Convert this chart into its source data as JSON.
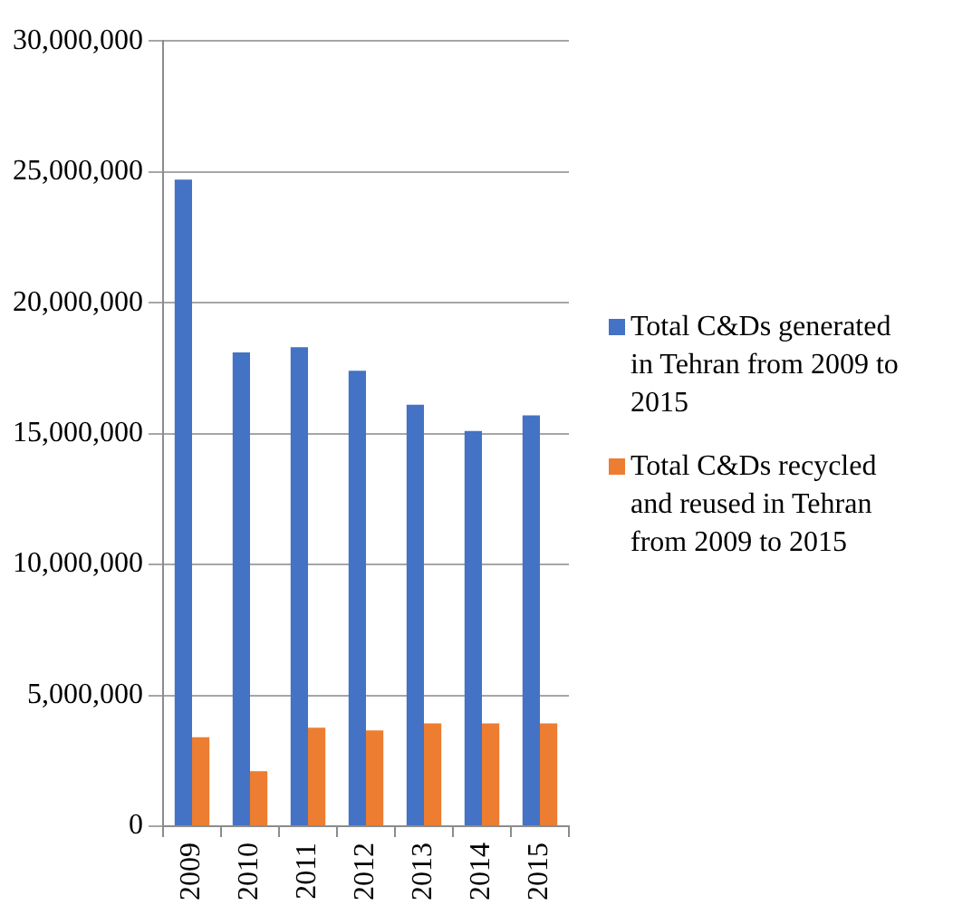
{
  "chart_data": {
    "type": "bar",
    "categories": [
      "2009",
      "2010",
      "2011",
      "2012",
      "2013",
      "2014",
      "2015"
    ],
    "series": [
      {
        "name": "Total C&Ds generated in Tehran from 2009 to 2015",
        "color": "#4472c4",
        "values": [
          24700000,
          18100000,
          18300000,
          17400000,
          16100000,
          15100000,
          15700000
        ]
      },
      {
        "name": "Total C&Ds recycled and reused in Tehran from 2009 to 2015",
        "color": "#ed7d31",
        "values": [
          3400000,
          2100000,
          3760000,
          3660000,
          3930000,
          3930000,
          3930000
        ]
      }
    ],
    "ylim": [
      0,
      30000000
    ],
    "yticks": [
      0,
      {
        "value": 5000000,
        "label": "5,000,000"
      },
      {
        "value": 10000000,
        "label": "10,000,000"
      },
      {
        "value": 15000000,
        "label": "15,000,000"
      },
      {
        "value": 20000000,
        "label": "20,000,000"
      },
      {
        "value": 25000000,
        "label": "25,000,000"
      },
      {
        "value": 30000000,
        "label": "30,000,000"
      }
    ],
    "grid": "y",
    "legend": "right"
  }
}
